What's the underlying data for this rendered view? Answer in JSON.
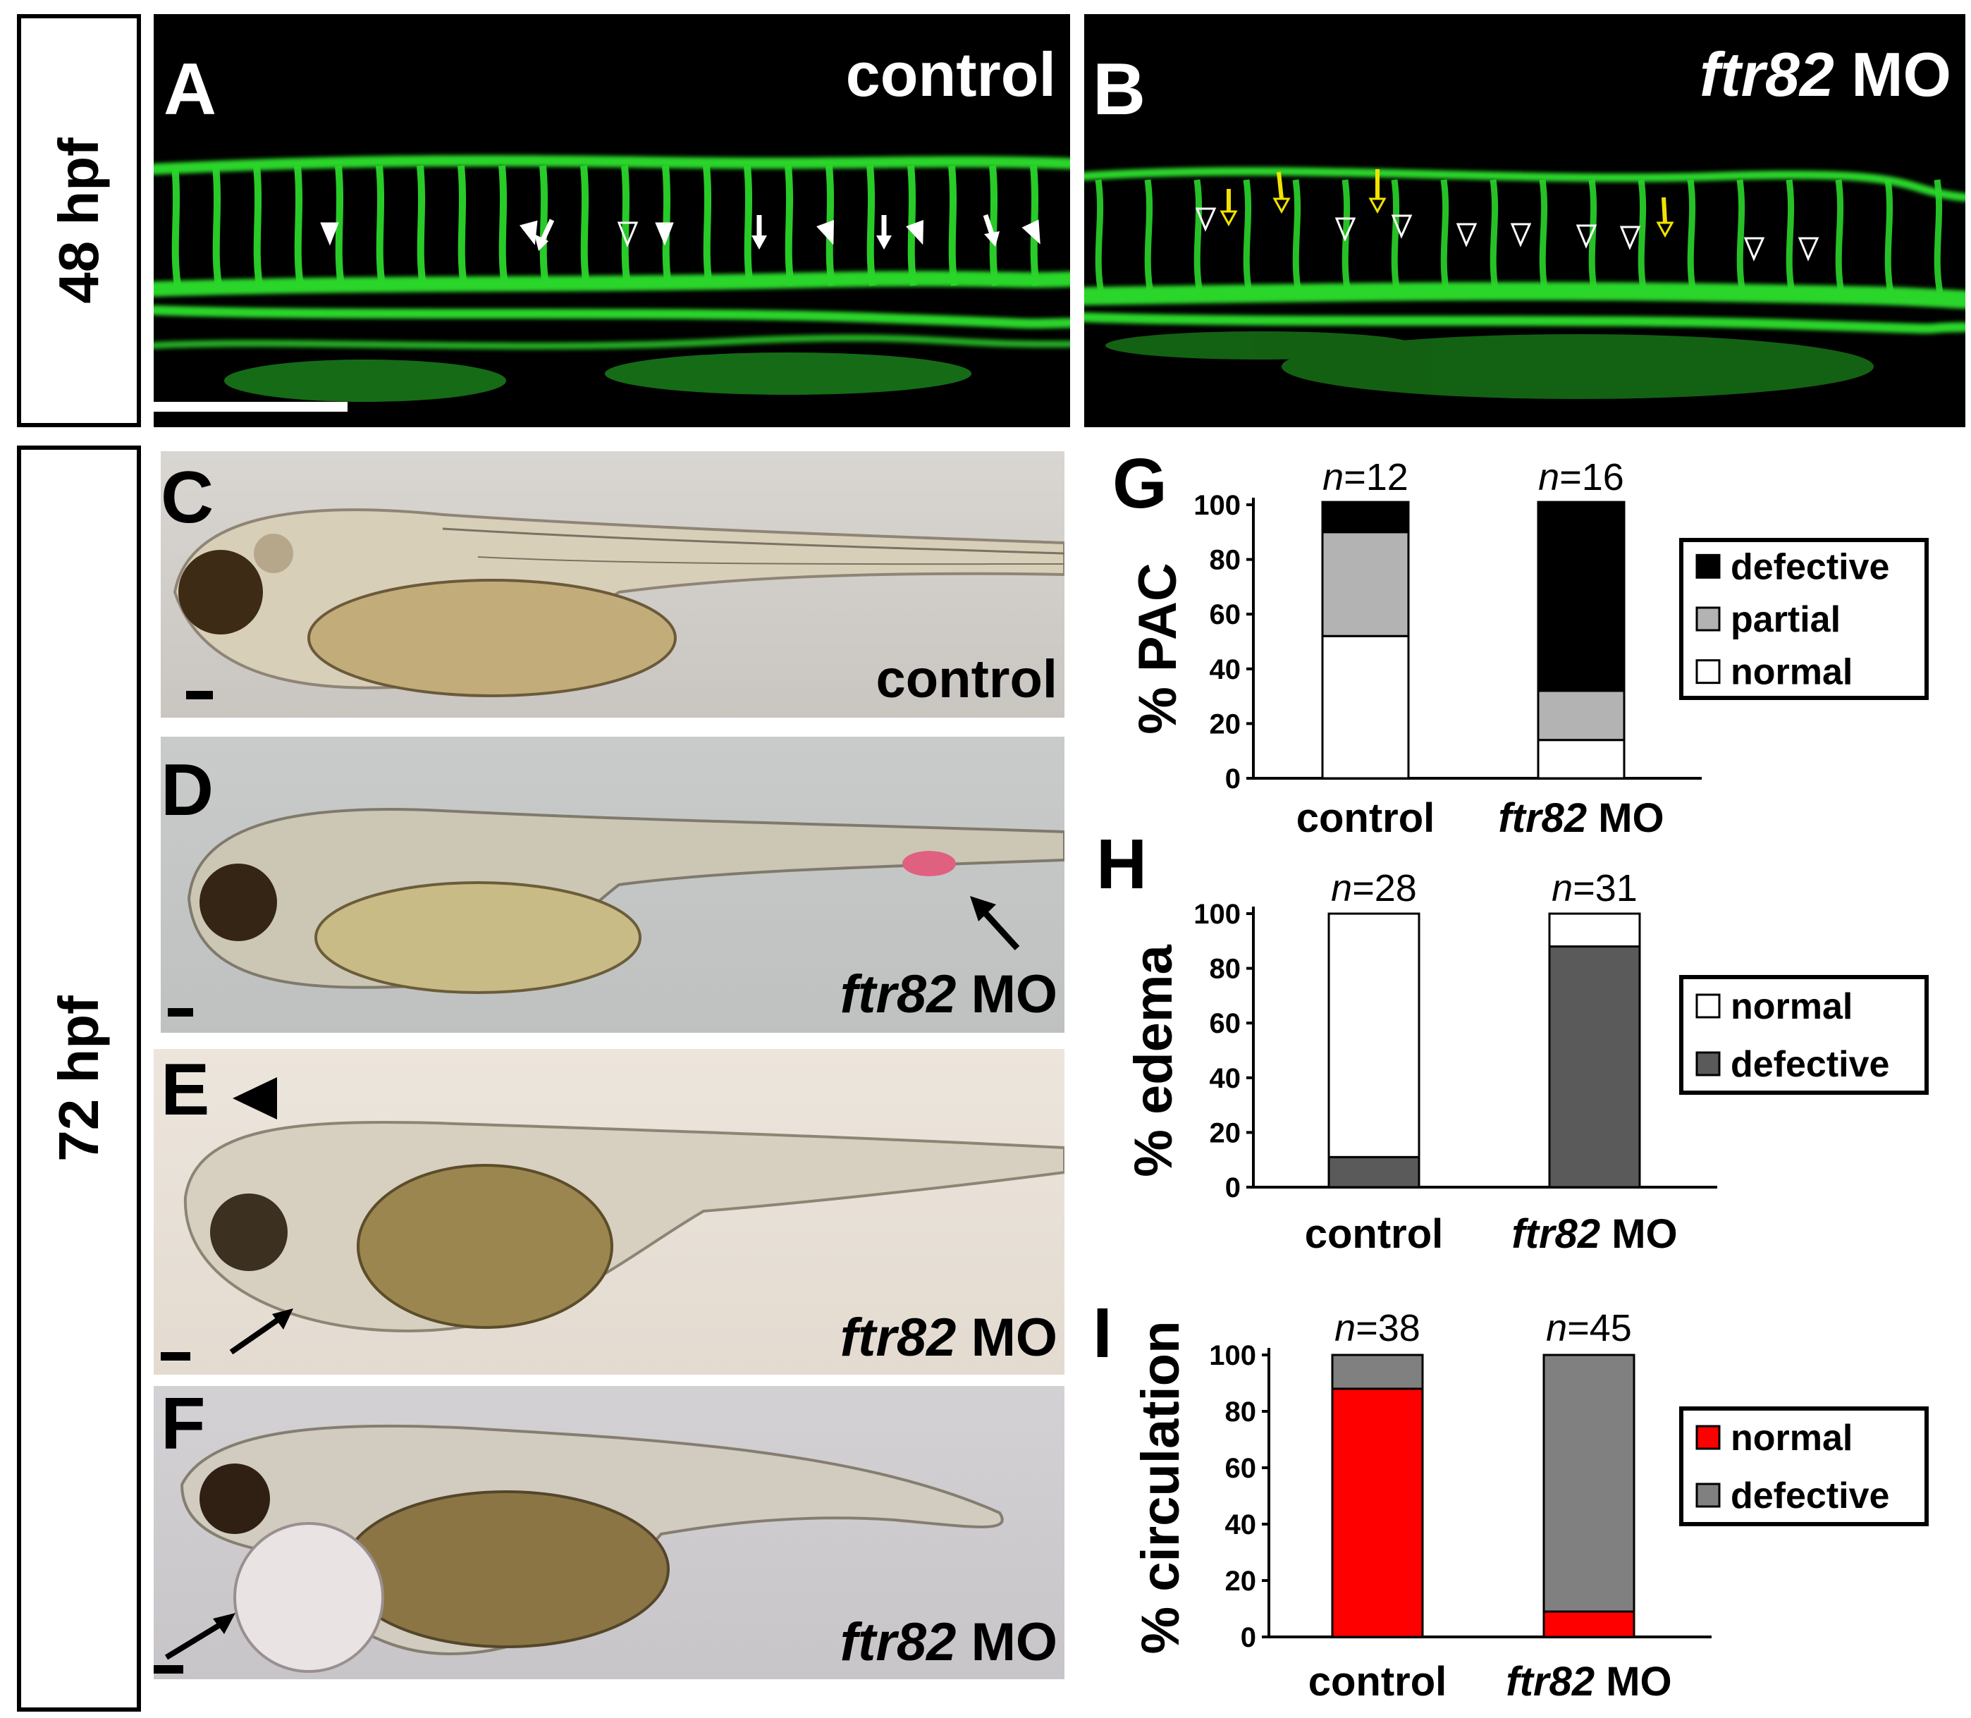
{
  "stages": {
    "top": "48 hpf",
    "bottom": "72 hpf"
  },
  "panels": {
    "A": {
      "label": "A",
      "text": "control"
    },
    "B": {
      "label": "B",
      "gene": "ftr82",
      "suffix": " MO"
    },
    "C": {
      "label": "C",
      "text": "control"
    },
    "D": {
      "label": "D",
      "gene": "ftr82",
      "suffix": " MO"
    },
    "E": {
      "label": "E",
      "gene": "ftr82",
      "suffix": " MO"
    },
    "F": {
      "label": "F",
      "gene": "ftr82",
      "suffix": " MO"
    }
  },
  "colors": {
    "vessel": "#2bd62b",
    "arrow_yellow": "#f2e200",
    "red": "#ff0000",
    "dark_gray": "#5a5a5a",
    "gray": "#808080",
    "light_gray": "#b3b3b3"
  },
  "chart_data": [
    {
      "type": "bar",
      "stacked": true,
      "label": "G",
      "ylabel": "% PAC",
      "categories": [
        "control",
        "ftr82 MO"
      ],
      "n": [
        "n=12",
        "n=16"
      ],
      "ylim": [
        0,
        100
      ],
      "yticks": [
        0,
        20,
        40,
        60,
        80,
        100
      ],
      "legend_placement": "right",
      "series": [
        {
          "name": "normal",
          "values": [
            52,
            14
          ],
          "color": "#ffffff"
        },
        {
          "name": "partial",
          "values": [
            38,
            18
          ],
          "color": "#b3b3b3"
        },
        {
          "name": "defective",
          "values": [
            11,
            69
          ],
          "color": "#000000"
        }
      ],
      "legend_order": [
        "defective",
        "partial",
        "normal"
      ]
    },
    {
      "type": "bar",
      "stacked": true,
      "label": "H",
      "ylabel": "% edema",
      "categories": [
        "control",
        "ftr82 MO"
      ],
      "n": [
        "n=28",
        "n=31"
      ],
      "ylim": [
        0,
        100
      ],
      "yticks": [
        0,
        20,
        40,
        60,
        80,
        100
      ],
      "legend_placement": "right",
      "series": [
        {
          "name": "defective",
          "values": [
            11,
            88
          ],
          "color": "#5a5a5a"
        },
        {
          "name": "normal",
          "values": [
            89,
            12
          ],
          "color": "#ffffff"
        }
      ],
      "legend_order": [
        "normal",
        "defective"
      ]
    },
    {
      "type": "bar",
      "stacked": true,
      "label": "I",
      "ylabel": "% circulation",
      "categories": [
        "control",
        "ftr82 MO"
      ],
      "n": [
        "n=38",
        "n=45"
      ],
      "ylim": [
        0,
        100
      ],
      "yticks": [
        0,
        20,
        40,
        60,
        80,
        100
      ],
      "legend_placement": "right",
      "series": [
        {
          "name": "normal",
          "values": [
            88,
            9
          ],
          "color": "#ff0000"
        },
        {
          "name": "defective",
          "values": [
            12,
            91
          ],
          "color": "#808080"
        }
      ],
      "legend_order": [
        "normal",
        "defective"
      ]
    }
  ]
}
